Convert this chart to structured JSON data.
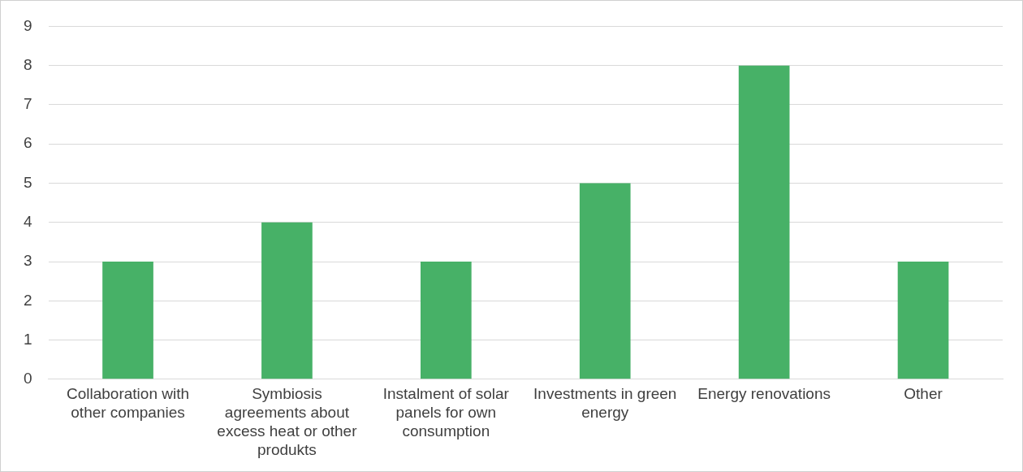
{
  "chart_data": {
    "type": "bar",
    "categories": [
      "Collaboration with other companies",
      "Symbiosis agreements about excess heat or other produkts",
      "Instalment of solar panels for own consumption",
      "Investments in green energy",
      "Energy renovations",
      "Other"
    ],
    "values": [
      3,
      4,
      3,
      5,
      8,
      3
    ],
    "color": "#47b167",
    "ylim": [
      0,
      9
    ],
    "yticks": [
      0,
      1,
      2,
      3,
      4,
      5,
      6,
      7,
      8,
      9
    ],
    "grid": "y",
    "legend": false
  }
}
